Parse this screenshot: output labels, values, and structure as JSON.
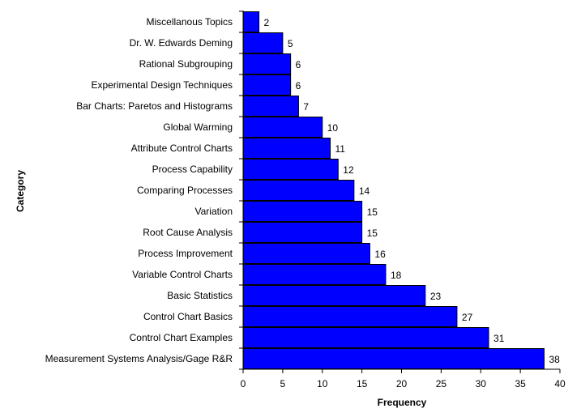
{
  "chart_data": {
    "type": "bar",
    "orientation": "horizontal",
    "categories": [
      "Miscellanous Topics",
      "Dr. W. Edwards Deming",
      "Rational Subgrouping",
      "Experimental Design Techniques",
      "Bar Charts: Paretos and Histograms",
      "Global Warming",
      "Attribute Control Charts",
      "Process Capability",
      "Comparing Processes",
      "Variation",
      "Root Cause Analysis",
      "Process Improvement",
      "Variable Control Charts",
      "Basic Statistics",
      "Control Chart Basics",
      "Control Chart Examples",
      "Measurement Systems Analysis/Gage R&R"
    ],
    "values": [
      2,
      5,
      6,
      6,
      7,
      10,
      11,
      12,
      14,
      15,
      15,
      16,
      18,
      23,
      27,
      31,
      38
    ],
    "data_labels": [
      "2",
      "5",
      "6",
      "6",
      "7",
      "10",
      "11",
      "12",
      "14",
      "15",
      "15",
      "16",
      "18",
      "23",
      "27",
      "31",
      "38"
    ],
    "title": "",
    "xlabel": "Frequency",
    "ylabel": "Category",
    "xlim": [
      0,
      40
    ],
    "xticks": [
      "0",
      "5",
      "10",
      "15",
      "20",
      "25",
      "30",
      "35",
      "40"
    ],
    "grid": false,
    "legend": "none",
    "bar_color": "#0000FF",
    "bar_edge_color": "#000000"
  }
}
